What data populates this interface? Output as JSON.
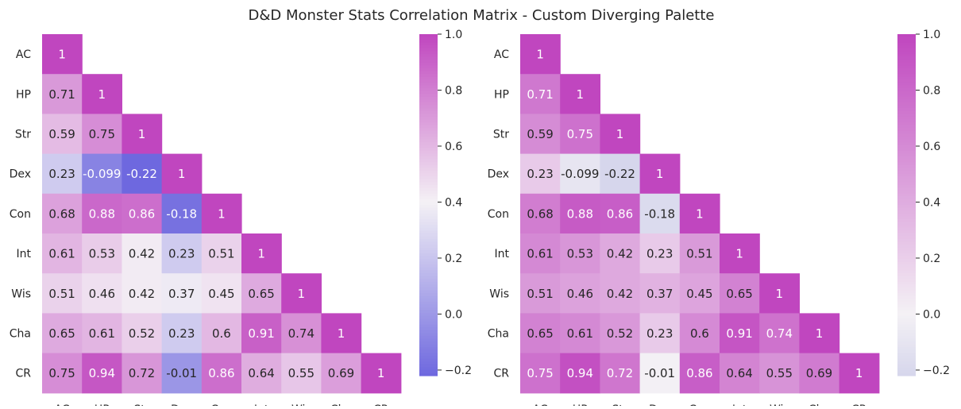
{
  "figure": {
    "title": "D&D Monster Stats Correlation Matrix - Custom Diverging Palette"
  },
  "chart_data": [
    {
      "type": "heatmap",
      "title": "",
      "labels": [
        "AC",
        "HP",
        "Str",
        "Dex",
        "Con",
        "Int",
        "Wis",
        "Cha",
        "CR"
      ],
      "mask": "upper-triangle",
      "annot": true,
      "matrix": [
        [
          1,
          0.71,
          0.59,
          0.23,
          0.68,
          0.61,
          0.51,
          0.65,
          0.75
        ],
        [
          0.71,
          1,
          0.75,
          -0.099,
          0.88,
          0.53,
          0.46,
          0.61,
          0.94
        ],
        [
          0.59,
          0.75,
          1,
          -0.22,
          0.86,
          0.42,
          0.42,
          0.52,
          0.72
        ],
        [
          0.23,
          -0.099,
          -0.22,
          1,
          -0.18,
          0.23,
          0.37,
          0.23,
          -0.01
        ],
        [
          0.68,
          0.88,
          0.86,
          -0.18,
          1,
          0.51,
          0.45,
          0.6,
          0.86
        ],
        [
          0.61,
          0.53,
          0.42,
          0.23,
          0.51,
          1,
          0.65,
          0.91,
          0.64
        ],
        [
          0.51,
          0.46,
          0.42,
          0.37,
          0.45,
          0.65,
          1,
          0.74,
          0.55
        ],
        [
          0.65,
          0.61,
          0.52,
          0.23,
          0.6,
          0.91,
          0.74,
          1,
          0.69
        ],
        [
          0.75,
          0.94,
          0.72,
          -0.01,
          0.86,
          0.64,
          0.55,
          0.69,
          1
        ]
      ],
      "annotations": [
        [
          "1",
          "0.71",
          "0.59",
          "0.23",
          "0.68",
          "0.61",
          "0.51",
          "0.65",
          "0.75"
        ],
        [
          "0.71",
          "1",
          "0.75",
          "-0.099",
          "0.88",
          "0.53",
          "0.46",
          "0.61",
          "0.94"
        ],
        [
          "0.59",
          "0.75",
          "1",
          "-0.22",
          "0.86",
          "0.42",
          "0.42",
          "0.52",
          "0.72"
        ],
        [
          "0.23",
          "-0.099",
          "-0.22",
          "1",
          "-0.18",
          "0.23",
          "0.37",
          "0.23",
          "-0.01"
        ],
        [
          "0.68",
          "0.88",
          "0.86",
          "-0.18",
          "1",
          "0.51",
          "0.45",
          "0.6",
          "0.86"
        ],
        [
          "0.61",
          "0.53",
          "0.42",
          "0.23",
          "0.51",
          "1",
          "0.65",
          "0.91",
          "0.64"
        ],
        [
          "0.51",
          "0.46",
          "0.42",
          "0.37",
          "0.45",
          "0.65",
          "1",
          "0.74",
          "0.55"
        ],
        [
          "0.65",
          "0.61",
          "0.52",
          "0.23",
          "0.6",
          "0.91",
          "0.74",
          "1",
          "0.69"
        ],
        [
          "0.75",
          "0.94",
          "0.72",
          "-0.01",
          "0.86",
          "0.64",
          "0.55",
          "0.69",
          "1"
        ]
      ],
      "colorbar": {
        "min": -0.22,
        "max": 1.0,
        "center": 0.4,
        "ticks": [
          -0.2,
          0.0,
          0.2,
          0.4,
          0.6,
          0.8,
          1.0
        ],
        "tick_labels": [
          "−0.2",
          "0.0",
          "0.2",
          "0.4",
          "0.6",
          "0.8",
          "1.0"
        ],
        "palette": {
          "low": "#6e68df",
          "mid": "#f4f1f5",
          "high": "#c046bf"
        }
      }
    },
    {
      "type": "heatmap",
      "title": "",
      "labels": [
        "AC",
        "HP",
        "Str",
        "Dex",
        "Con",
        "Int",
        "Wis",
        "Cha",
        "CR"
      ],
      "mask": "upper-triangle",
      "annot": true,
      "matrix": [
        [
          1,
          0.71,
          0.59,
          0.23,
          0.68,
          0.61,
          0.51,
          0.65,
          0.75
        ],
        [
          0.71,
          1,
          0.75,
          -0.099,
          0.88,
          0.53,
          0.46,
          0.61,
          0.94
        ],
        [
          0.59,
          0.75,
          1,
          -0.22,
          0.86,
          0.42,
          0.42,
          0.52,
          0.72
        ],
        [
          0.23,
          -0.099,
          -0.22,
          1,
          -0.18,
          0.23,
          0.37,
          0.23,
          -0.01
        ],
        [
          0.68,
          0.88,
          0.86,
          -0.18,
          1,
          0.51,
          0.45,
          0.6,
          0.86
        ],
        [
          0.61,
          0.53,
          0.42,
          0.23,
          0.51,
          1,
          0.65,
          0.91,
          0.64
        ],
        [
          0.51,
          0.46,
          0.42,
          0.37,
          0.45,
          0.65,
          1,
          0.74,
          0.55
        ],
        [
          0.65,
          0.61,
          0.52,
          0.23,
          0.6,
          0.91,
          0.74,
          1,
          0.69
        ],
        [
          0.75,
          0.94,
          0.72,
          -0.01,
          0.86,
          0.64,
          0.55,
          0.69,
          1
        ]
      ],
      "annotations": [
        [
          "1",
          "0.71",
          "0.59",
          "0.23",
          "0.68",
          "0.61",
          "0.51",
          "0.65",
          "0.75"
        ],
        [
          "0.71",
          "1",
          "0.75",
          "-0.099",
          "0.88",
          "0.53",
          "0.46",
          "0.61",
          "0.94"
        ],
        [
          "0.59",
          "0.75",
          "1",
          "-0.22",
          "0.86",
          "0.42",
          "0.42",
          "0.52",
          "0.72"
        ],
        [
          "0.23",
          "-0.099",
          "-0.22",
          "1",
          "-0.18",
          "0.23",
          "0.37",
          "0.23",
          "-0.01"
        ],
        [
          "0.68",
          "0.88",
          "0.86",
          "-0.18",
          "1",
          "0.51",
          "0.45",
          "0.6",
          "0.86"
        ],
        [
          "0.61",
          "0.53",
          "0.42",
          "0.23",
          "0.51",
          "1",
          "0.65",
          "0.91",
          "0.64"
        ],
        [
          "0.51",
          "0.46",
          "0.42",
          "0.37",
          "0.45",
          "0.65",
          "1",
          "0.74",
          "0.55"
        ],
        [
          "0.65",
          "0.61",
          "0.52",
          "0.23",
          "0.6",
          "0.91",
          "0.74",
          "1",
          "0.69"
        ],
        [
          "0.75",
          "0.94",
          "0.72",
          "-0.01",
          "0.86",
          "0.64",
          "0.55",
          "0.69",
          "1"
        ]
      ],
      "colorbar": {
        "min": -0.22,
        "max": 1.0,
        "center": 0.0,
        "ticks": [
          -0.2,
          0.0,
          0.2,
          0.4,
          0.6,
          0.8,
          1.0
        ],
        "tick_labels": [
          "−0.2",
          "0.0",
          "0.2",
          "0.4",
          "0.6",
          "0.8",
          "1.0"
        ],
        "palette": {
          "low": "#d6d6ec",
          "mid": "#f4f1f5",
          "high": "#c046bf"
        }
      }
    }
  ]
}
